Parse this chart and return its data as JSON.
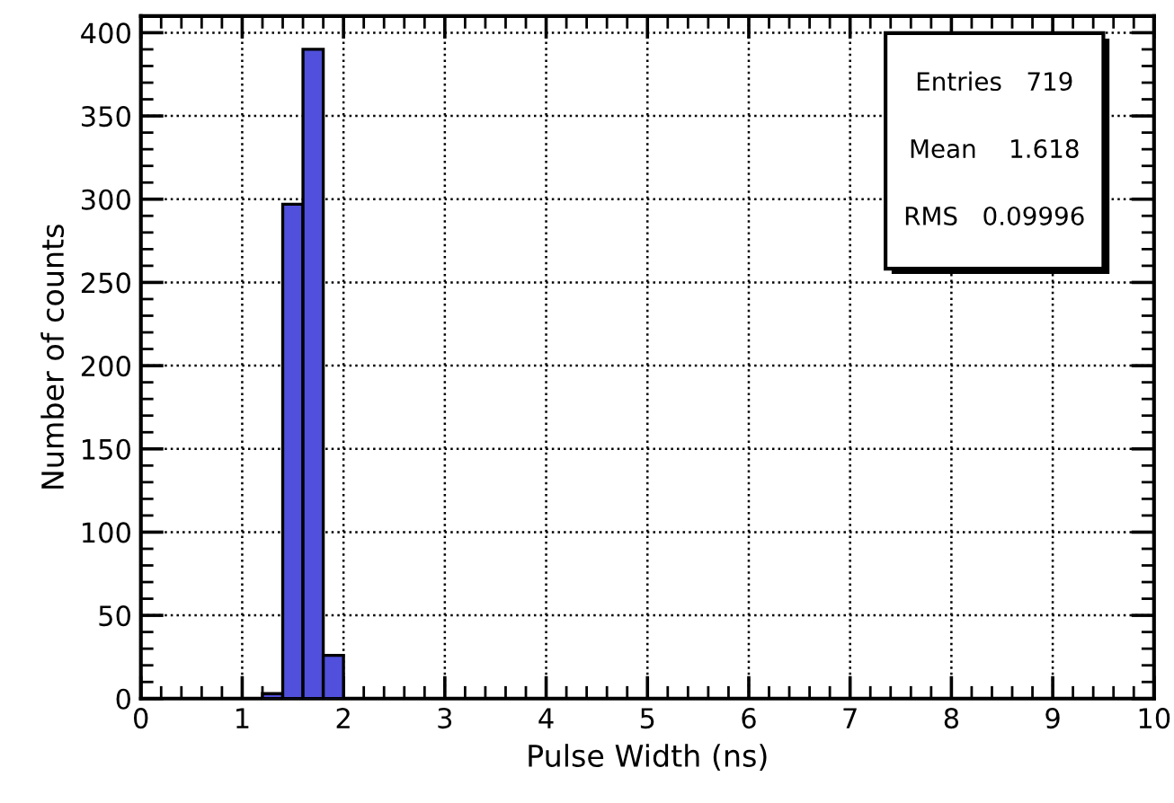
{
  "chart_data": {
    "type": "histogram",
    "xlabel": "Pulse Width (ns)",
    "ylabel": "Number of counts",
    "bins": [
      1.2,
      1.4,
      1.6,
      1.8,
      2.0
    ],
    "values": [
      3,
      297,
      390,
      26
    ],
    "color": "#5050dc",
    "xlim": [
      0,
      10
    ],
    "xticks": [
      0,
      1,
      2,
      3,
      4,
      5,
      6,
      7,
      8,
      9,
      10
    ],
    "ylim": [
      0,
      410
    ],
    "yticks": [
      0,
      50,
      100,
      150,
      200,
      250,
      300,
      350,
      400
    ],
    "grid": true,
    "annotations": [
      "Entries   719",
      "Mean    1.618",
      "RMS   0.09996"
    ]
  }
}
